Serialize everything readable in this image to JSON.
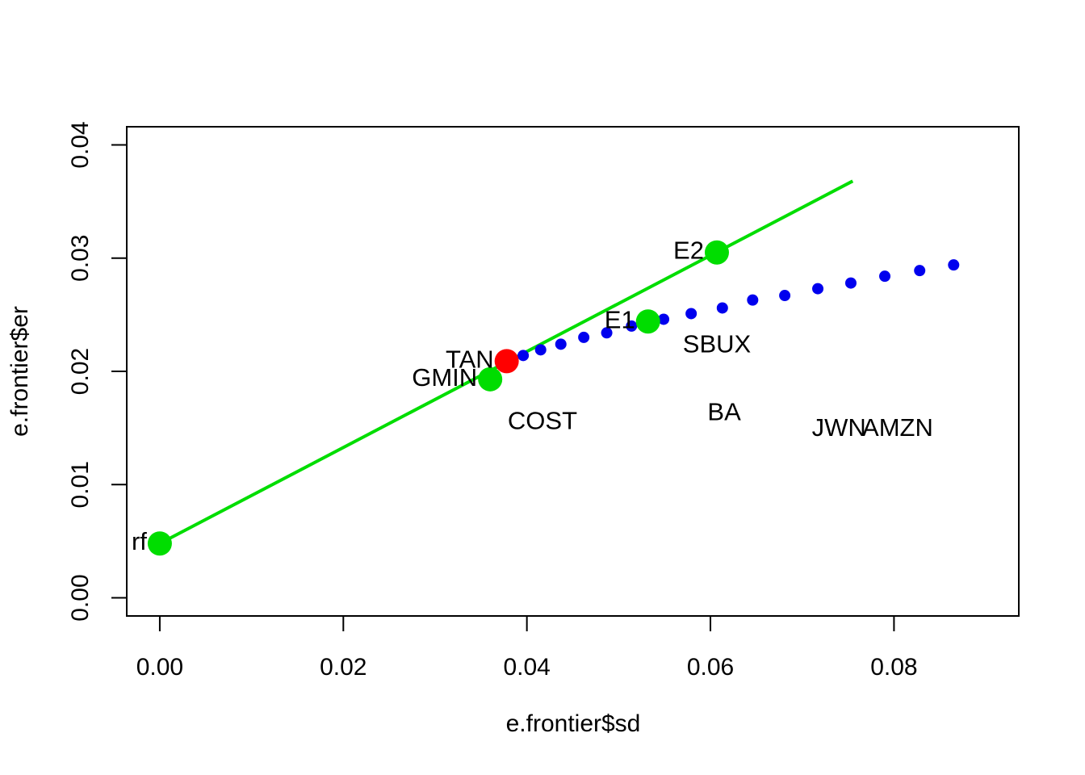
{
  "chart_data": {
    "type": "scatter",
    "title": "",
    "xlabel": "e.frontier$sd",
    "ylabel": "e.frontier$er",
    "xlim": [
      -0.0036,
      0.0936
    ],
    "ylim": [
      -0.0016,
      0.0416
    ],
    "grid": false,
    "legend": "none",
    "x_ticks": [
      {
        "value": 0.0,
        "label": "0.00"
      },
      {
        "value": 0.02,
        "label": "0.02"
      },
      {
        "value": 0.04,
        "label": "0.04"
      },
      {
        "value": 0.06,
        "label": "0.06"
      },
      {
        "value": 0.08,
        "label": "0.08"
      }
    ],
    "y_ticks": [
      {
        "value": 0.0,
        "label": "0.00"
      },
      {
        "value": 0.01,
        "label": "0.01"
      },
      {
        "value": 0.02,
        "label": "0.02"
      },
      {
        "value": 0.03,
        "label": "0.03"
      },
      {
        "value": 0.04,
        "label": "0.04"
      }
    ],
    "colors": {
      "frontier": "#0000ee",
      "line": "#00dd00",
      "portfolio": "#00dd00",
      "tangency": "#ff0000",
      "text": "#000000",
      "frame": "#000000"
    },
    "capital_market_line": {
      "x1": 0.0,
      "y1": 0.0048,
      "x2": 0.0755,
      "y2": 0.0368
    },
    "frontier_points": [
      [
        0.0396,
        0.0214
      ],
      [
        0.0415,
        0.0219
      ],
      [
        0.0437,
        0.0224
      ],
      [
        0.0462,
        0.023
      ],
      [
        0.0487,
        0.0234
      ],
      [
        0.0514,
        0.024
      ],
      [
        0.0549,
        0.0246
      ],
      [
        0.0579,
        0.0251
      ],
      [
        0.0613,
        0.0256
      ],
      [
        0.0646,
        0.0263
      ],
      [
        0.0681,
        0.0267
      ],
      [
        0.0717,
        0.0273
      ],
      [
        0.0753,
        0.0278
      ],
      [
        0.079,
        0.0284
      ],
      [
        0.0828,
        0.0289
      ],
      [
        0.0865,
        0.0294
      ]
    ],
    "portfolios": [
      {
        "label": "rf",
        "x": 0.0,
        "y": 0.0048,
        "color": "green"
      },
      {
        "label": "GMIN",
        "x": 0.036,
        "y": 0.0193,
        "color": "green"
      },
      {
        "label": "TAN",
        "x": 0.0378,
        "y": 0.0209,
        "color": "red"
      },
      {
        "label": "E1",
        "x": 0.0532,
        "y": 0.0244,
        "color": "green"
      },
      {
        "label": "E2",
        "x": 0.0607,
        "y": 0.0305,
        "color": "green"
      }
    ],
    "assets": [
      {
        "label": "COST",
        "x": 0.0417,
        "y": 0.0156
      },
      {
        "label": "SBUX",
        "x": 0.0607,
        "y": 0.0224
      },
      {
        "label": "BA",
        "x": 0.0615,
        "y": 0.0164
      },
      {
        "label": "JWN",
        "x": 0.074,
        "y": 0.015
      },
      {
        "label": "AMZN",
        "x": 0.0804,
        "y": 0.015
      }
    ]
  }
}
